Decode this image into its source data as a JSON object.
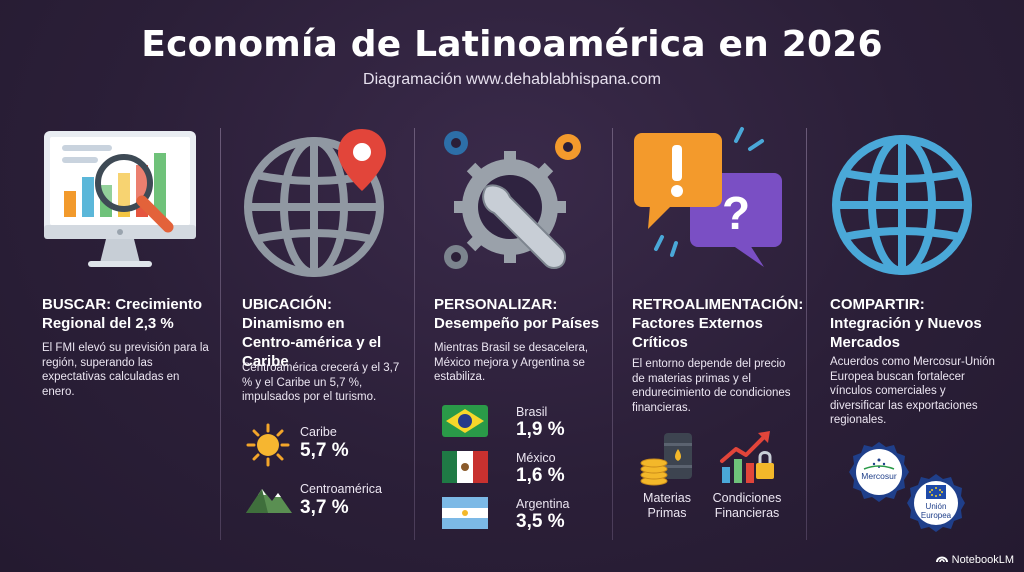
{
  "header": {
    "title": "Economía de Latinoamérica en 2026",
    "subtitle": "Diagramación www.dehablabhispana.com"
  },
  "columns": [
    {
      "icon": "monitor-magnifier-chart-icon",
      "title": "BUSCAR: Crecimiento Regional del 2,3 %",
      "body": "El FMI elevó su previsión para la región, superando las expectativas calculadas en enero."
    },
    {
      "icon": "globe-location-pin-icon",
      "title": "UBICACIÓN: Dinamismo en Centro-américa y el Caribe",
      "body": "Centroamérica crecerá y el 3,7 % y el Caribe un 5,7 %, impulsados por el turismo.",
      "stats": [
        {
          "icon": "sun-icon",
          "label": "Caribe",
          "value": "5,7 %"
        },
        {
          "icon": "mountain-icon",
          "label": "Centroamérica",
          "value": "3,7 %"
        }
      ]
    },
    {
      "icon": "gears-wrench-icon",
      "title": "PERSONALIZAR: Desempeño por Países",
      "body": "Mientras Brasil se desacelera, México mejora y Argentina se estabiliza.",
      "stats": [
        {
          "icon": "brazil-flag-icon",
          "label": "Brasil",
          "value": "1,9 %"
        },
        {
          "icon": "mexico-flag-icon",
          "label": "México",
          "value": "1,6 %"
        },
        {
          "icon": "argentina-flag-icon",
          "label": "Argentina",
          "value": "3,5 %"
        }
      ]
    },
    {
      "icon": "speech-bubbles-alert-question-icon",
      "title": "RETROALIMENTACIÓN: Factores Externos Críticos",
      "body": "El entorno depende del precio de materias primas y el endurecimiento de condiciones financieras.",
      "items": [
        {
          "icon": "oil-barrel-coins-icon",
          "label_1": "Materias",
          "label_2": "Primas"
        },
        {
          "icon": "chart-arrow-lock-icon",
          "label_1": "Condiciones",
          "label_2": "Financieras"
        }
      ]
    },
    {
      "icon": "globe-icon",
      "title": "COMPARTIR: Integración y Nuevos Mercados",
      "body": "Acuerdos como Mercosur-Unión Europea buscan fortalecer vínculos comerciales y diversificar las exportaciones regionales.",
      "badges": [
        {
          "icon": "mercosur-badge-icon",
          "label": "Mercosur"
        },
        {
          "icon": "eu-badge-icon",
          "label_1": "Unión",
          "label_2": "Europea"
        }
      ]
    }
  ],
  "footer": {
    "brand": "NotebookLM",
    "icon": "notebooklm-logo-icon"
  },
  "colors": {
    "background": "#2b1f38",
    "orange": "#f39a2c",
    "purple": "#7a4fc4",
    "globe_blue": "#4aa8d8",
    "gear_blue": "#2d6fa8",
    "red_pin": "#e2453a",
    "badge_blue": "#1f3f8a"
  }
}
